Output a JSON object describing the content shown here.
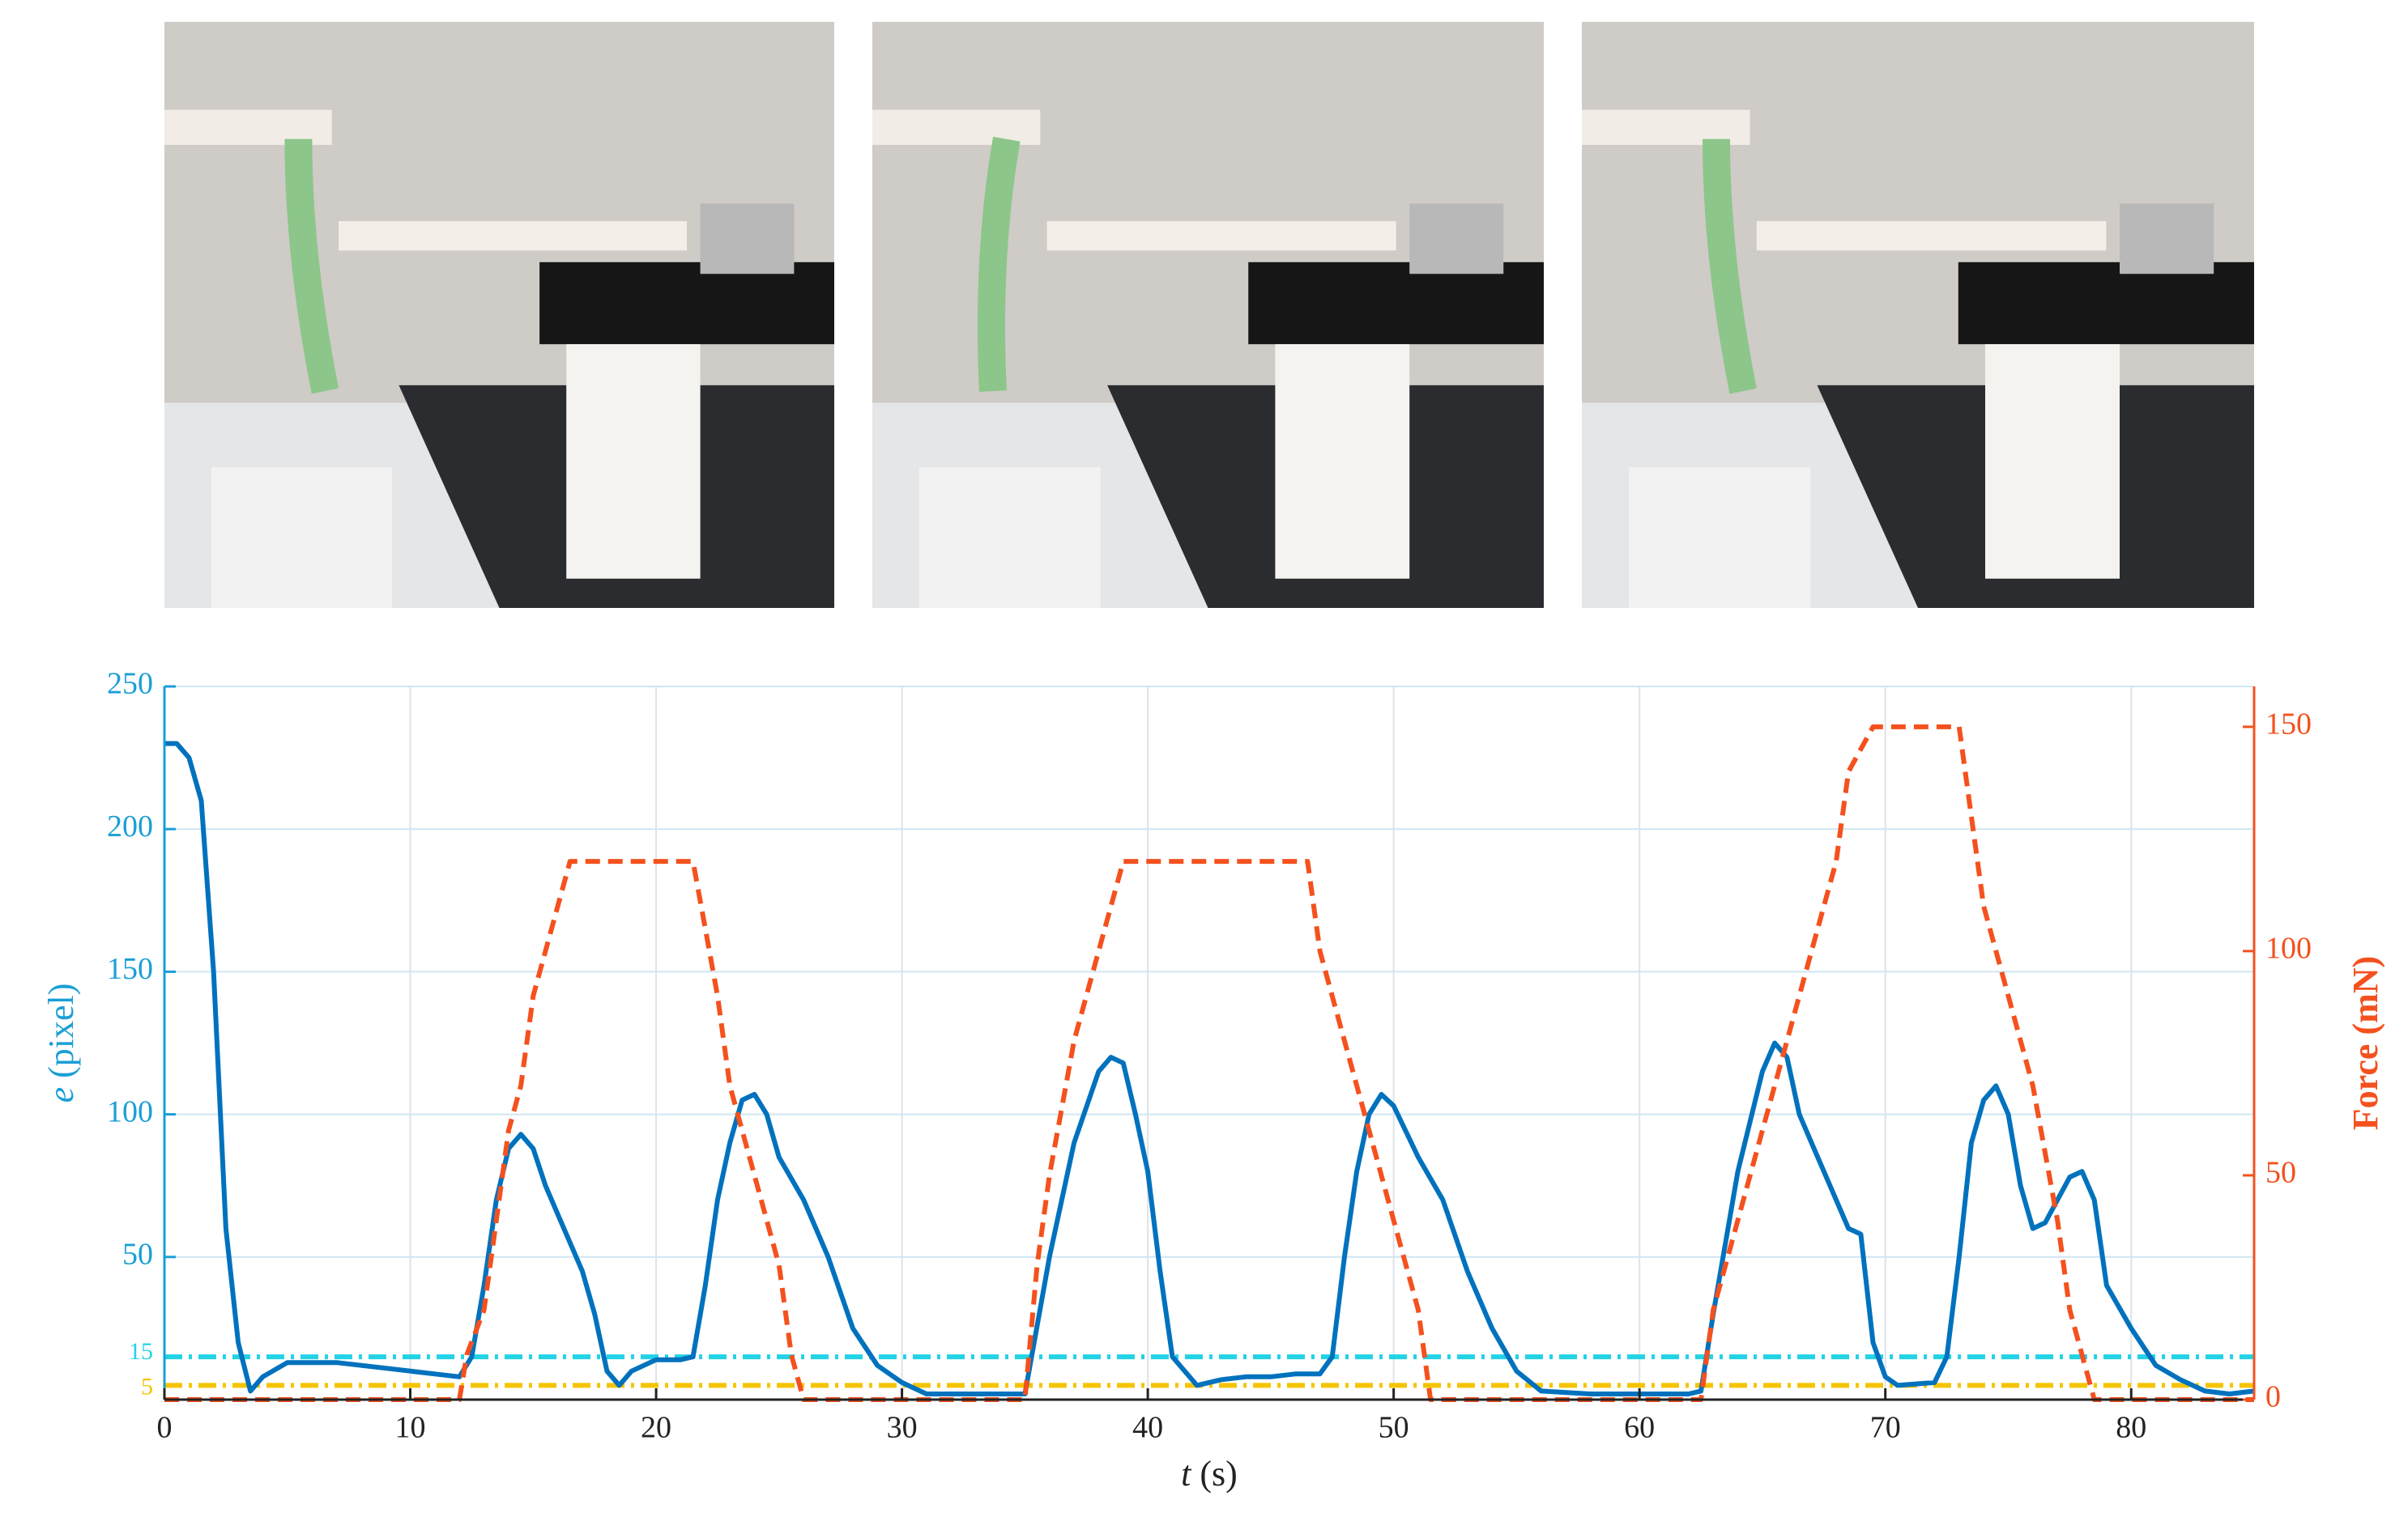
{
  "chart_data": {
    "type": "line",
    "xlabel": {
      "symbol": "t",
      "unit": "(s)"
    },
    "ylabel": {
      "symbol": "e",
      "unit": "(pixel)"
    },
    "y2label": "Force (mN)",
    "xlim": [
      0,
      85
    ],
    "xticks": [
      0,
      10,
      20,
      30,
      40,
      50,
      60,
      70,
      80
    ],
    "ylim": [
      0,
      250
    ],
    "yticks": [
      50,
      100,
      150,
      200,
      250
    ],
    "y2lim": [
      0,
      159
    ],
    "y2ticks": [
      0,
      50,
      100,
      150
    ],
    "grid": true,
    "axis_color": "#1a9fd6",
    "axis2_color": "#f4511e",
    "thresholds": [
      {
        "value": 15,
        "label": "15",
        "color": "#22d3e6"
      },
      {
        "value": 5,
        "label": "5",
        "color": "#f5c400"
      }
    ],
    "series": [
      {
        "name": "e",
        "color": "#0072bd",
        "dash": false,
        "x": [
          0,
          0.5,
          1,
          1.5,
          2,
          2.5,
          3,
          3.5,
          4,
          5,
          7,
          9,
          11,
          12,
          12.5,
          13,
          13.5,
          14,
          14.5,
          15,
          15.5,
          16,
          16.5,
          17,
          17.5,
          18,
          18.5,
          19,
          20,
          21,
          21.5,
          22,
          22.5,
          23,
          23.5,
          24,
          24.5,
          25,
          26,
          27,
          28,
          29,
          30,
          31,
          33,
          35,
          36,
          37,
          38,
          38.5,
          39,
          39.5,
          40,
          40.5,
          41,
          42,
          43,
          44,
          45,
          46,
          47,
          47.5,
          48,
          48.5,
          49,
          49.5,
          50,
          51,
          52,
          53,
          54,
          55,
          56,
          58,
          60,
          62,
          62.5,
          63,
          64,
          65,
          65.5,
          66,
          66.5,
          67,
          68,
          68.5,
          69,
          69.5,
          70,
          70.5,
          72,
          72.5,
          73,
          73.5,
          74,
          74.5,
          75,
          75.5,
          76,
          76.5,
          77,
          77.5,
          78,
          78.5,
          79,
          80,
          81,
          82,
          83,
          84,
          85
        ],
        "values": [
          230,
          230,
          225,
          210,
          150,
          60,
          20,
          3,
          8,
          13,
          13,
          11,
          9,
          8,
          15,
          40,
          70,
          88,
          93,
          88,
          75,
          65,
          55,
          45,
          30,
          10,
          5,
          10,
          14,
          14,
          15,
          40,
          70,
          90,
          105,
          107,
          100,
          85,
          70,
          50,
          25,
          12,
          6,
          2,
          2,
          2,
          50,
          90,
          115,
          120,
          118,
          100,
          80,
          45,
          15,
          5,
          7,
          8,
          8,
          9,
          9,
          15,
          50,
          80,
          100,
          107,
          103,
          85,
          70,
          45,
          25,
          10,
          3,
          2,
          2,
          2,
          3,
          30,
          80,
          115,
          125,
          120,
          100,
          90,
          70,
          60,
          58,
          20,
          8,
          5,
          6,
          15,
          50,
          90,
          105,
          110,
          100,
          75,
          60,
          62,
          70,
          78,
          80,
          70,
          40,
          25,
          12,
          7,
          3,
          2,
          3
        ]
      },
      {
        "name": "Force",
        "color": "#f4511e",
        "dash": true,
        "axis": "y2",
        "x": [
          0,
          12,
          12.3,
          13,
          13.5,
          14,
          14.5,
          15,
          16,
          16.5,
          21.5,
          22,
          22.5,
          23,
          24,
          25,
          25.5,
          26,
          35,
          35.5,
          36,
          37,
          38,
          39,
          46.5,
          47,
          48,
          49,
          50,
          51,
          51.5,
          62.5,
          63,
          64,
          65,
          66,
          67,
          68,
          68.5,
          69.5,
          73,
          73.5,
          74,
          75,
          76,
          77,
          77.5,
          78.5,
          85
        ],
        "values": [
          0,
          0,
          10,
          20,
          40,
          60,
          70,
          90,
          110,
          120,
          120,
          105,
          90,
          70,
          50,
          30,
          10,
          0,
          0,
          30,
          50,
          80,
          100,
          120,
          120,
          100,
          80,
          60,
          40,
          20,
          0,
          0,
          20,
          40,
          60,
          80,
          100,
          120,
          140,
          150,
          150,
          130,
          110,
          90,
          70,
          40,
          20,
          0,
          0
        ]
      }
    ]
  }
}
